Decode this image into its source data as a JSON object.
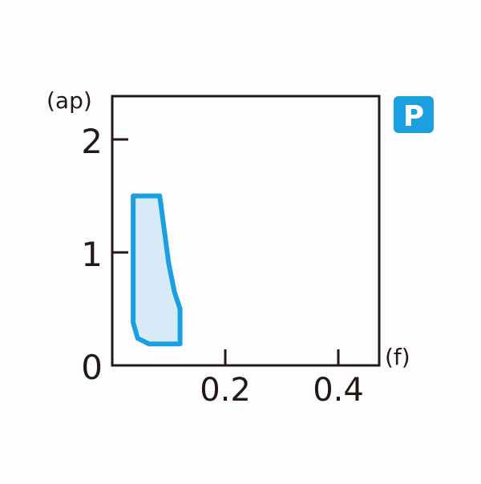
{
  "chart_data": {
    "type": "area",
    "xlabel": "(f)",
    "ylabel": "(ap)",
    "xlim": [
      0,
      0.47
    ],
    "ylim": [
      0,
      2.38
    ],
    "x_ticks": [
      0.2,
      0.4
    ],
    "x_tick_labels": [
      "0.2",
      "0.4"
    ],
    "y_ticks": [
      0,
      1,
      2
    ],
    "y_tick_labels": [
      "0",
      "1",
      "2"
    ],
    "grid": false,
    "region": {
      "boundary": [
        [
          0.037,
          1.5
        ],
        [
          0.084,
          1.5
        ],
        [
          0.092,
          1.2
        ],
        [
          0.1,
          0.9
        ],
        [
          0.11,
          0.65
        ],
        [
          0.12,
          0.5
        ],
        [
          0.12,
          0.19
        ],
        [
          0.065,
          0.19
        ],
        [
          0.045,
          0.24
        ],
        [
          0.037,
          0.38
        ]
      ],
      "stroke_color": "#1aa0e0",
      "fill_color": "#d6eaf8"
    },
    "badge": {
      "label": "P",
      "color": "#1aa0e0"
    }
  }
}
